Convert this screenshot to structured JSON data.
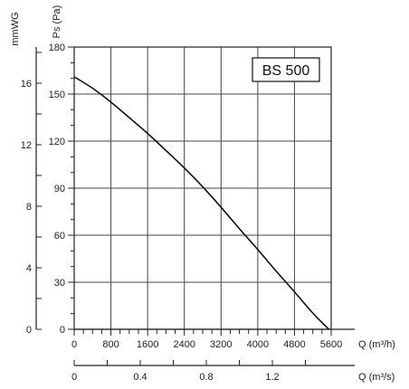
{
  "chart_data": {
    "type": "line",
    "title": "",
    "badge": "BS 500",
    "xlabel": "Q (m³/h)",
    "ylabel": "Ps (Pa)",
    "xlim": [
      0,
      5600
    ],
    "ylim": [
      0,
      180
    ],
    "grid": true,
    "x_ticks": [
      0,
      800,
      1600,
      2400,
      3200,
      4000,
      4800,
      5600
    ],
    "y_ticks": [
      0,
      30,
      60,
      90,
      120,
      150,
      180
    ],
    "secondary_x_axis": {
      "label": "Q (m³/s)",
      "lim": [
        0,
        1.556
      ],
      "ticks": [
        0,
        0.4,
        0.8,
        1.2
      ],
      "tick_labels": [
        "0",
        "0.4",
        "0.8",
        "1.2"
      ]
    },
    "secondary_y_axis": {
      "label": "mmWG",
      "lim": [
        0,
        18.35
      ],
      "ticks": [
        0,
        4,
        8,
        12,
        16
      ],
      "tick_labels": [
        "0",
        "4",
        "8",
        "12",
        "16"
      ]
    },
    "series": [
      {
        "x": [
          0,
          400,
          800,
          1200,
          1600,
          2000,
          2400,
          2800,
          3200,
          3600,
          4000,
          4400,
          4800,
          5200,
          5550
        ],
        "y": [
          161,
          154,
          145,
          135,
          125,
          114,
          103,
          91,
          78,
          64,
          51,
          37,
          24,
          10,
          0
        ]
      }
    ]
  }
}
